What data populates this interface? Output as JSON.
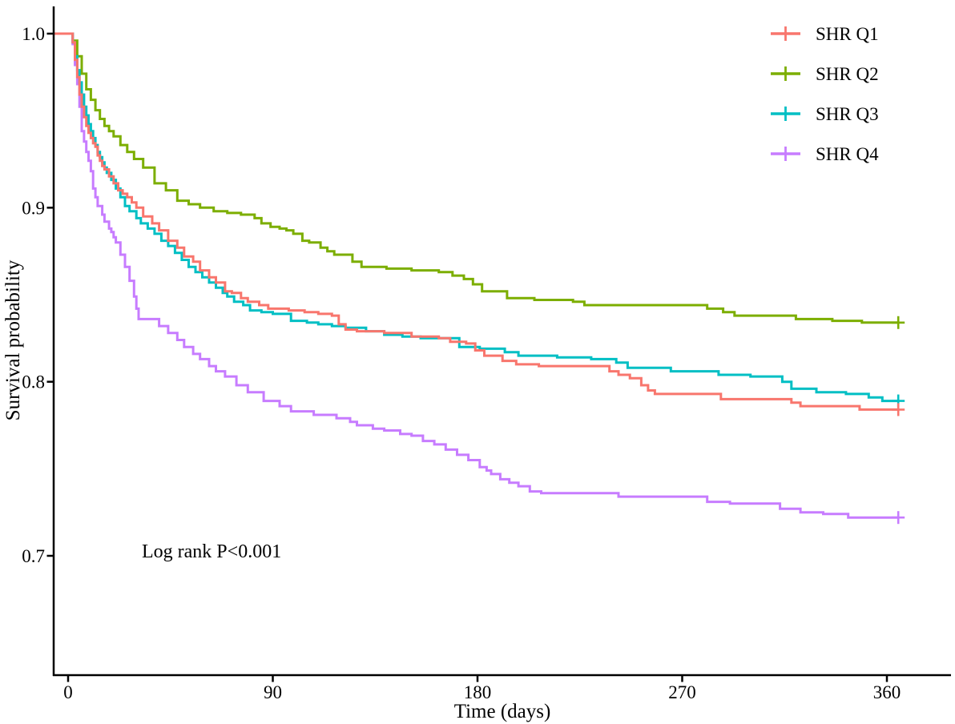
{
  "figure": {
    "type": "kaplan-meier-survival-plot",
    "background": "#ffffff",
    "axis_color": "#000000"
  },
  "chart_data": {
    "type": "line",
    "subtype": "kaplan-meier-step",
    "title": "",
    "xlabel": "Time (days)",
    "ylabel": "Survival probability",
    "x_ticks": [
      0,
      90,
      180,
      270,
      360
    ],
    "y_tick_labels": [
      "1.0",
      "0.9",
      "0.8",
      "0.7"
    ],
    "xlim": [
      0,
      394
    ],
    "ylim": [
      0.632,
      1.016
    ],
    "grid": false,
    "legend_position": "top-right",
    "end_time": 365,
    "annotation": {
      "text": "Log rank P<0.001"
    },
    "series": [
      {
        "name": "SHR Q1",
        "color": "#F8766D",
        "censor_at_end": true,
        "final_value": 0.784,
        "points": [
          [
            0,
            1.0
          ],
          [
            2,
            0.995
          ],
          [
            3,
            0.985
          ],
          [
            4,
            0.975
          ],
          [
            5,
            0.965
          ],
          [
            6,
            0.958
          ],
          [
            7,
            0.952
          ],
          [
            8,
            0.947
          ],
          [
            9,
            0.943
          ],
          [
            10,
            0.94
          ],
          [
            11,
            0.937
          ],
          [
            12,
            0.935
          ],
          [
            13,
            0.93
          ],
          [
            14,
            0.927
          ],
          [
            15,
            0.924
          ],
          [
            16,
            0.922
          ],
          [
            18,
            0.918
          ],
          [
            20,
            0.914
          ],
          [
            22,
            0.91
          ],
          [
            24,
            0.908
          ],
          [
            26,
            0.906
          ],
          [
            28,
            0.903
          ],
          [
            30,
            0.9
          ],
          [
            33,
            0.895
          ],
          [
            37,
            0.891
          ],
          [
            40,
            0.887
          ],
          [
            44,
            0.881
          ],
          [
            48,
            0.877
          ],
          [
            51,
            0.872
          ],
          [
            55,
            0.869
          ],
          [
            58,
            0.864
          ],
          [
            62,
            0.86
          ],
          [
            65,
            0.857
          ],
          [
            69,
            0.852
          ],
          [
            72,
            0.851
          ],
          [
            76,
            0.848
          ],
          [
            79,
            0.846
          ],
          [
            84,
            0.844
          ],
          [
            88,
            0.842
          ],
          [
            97,
            0.841
          ],
          [
            104,
            0.84
          ],
          [
            110,
            0.839
          ],
          [
            116,
            0.838
          ],
          [
            119,
            0.833
          ],
          [
            122,
            0.83
          ],
          [
            127,
            0.829
          ],
          [
            139,
            0.828
          ],
          [
            151,
            0.826
          ],
          [
            163,
            0.825
          ],
          [
            168,
            0.823
          ],
          [
            175,
            0.822
          ],
          [
            179,
            0.818
          ],
          [
            183,
            0.815
          ],
          [
            191,
            0.812
          ],
          [
            197,
            0.81
          ],
          [
            207,
            0.809
          ],
          [
            238,
            0.806
          ],
          [
            242,
            0.804
          ],
          [
            247,
            0.802
          ],
          [
            252,
            0.798
          ],
          [
            255,
            0.795
          ],
          [
            258,
            0.793
          ],
          [
            287,
            0.79
          ],
          [
            318,
            0.788
          ],
          [
            322,
            0.786
          ],
          [
            348,
            0.784
          ]
        ]
      },
      {
        "name": "SHR Q2",
        "color": "#7CAE00",
        "censor_at_end": true,
        "final_value": 0.834,
        "points": [
          [
            0,
            1.0
          ],
          [
            2,
            0.996
          ],
          [
            4,
            0.987
          ],
          [
            6,
            0.977
          ],
          [
            8,
            0.968
          ],
          [
            10,
            0.962
          ],
          [
            12,
            0.956
          ],
          [
            14,
            0.951
          ],
          [
            16,
            0.947
          ],
          [
            18,
            0.944
          ],
          [
            20,
            0.941
          ],
          [
            23,
            0.936
          ],
          [
            26,
            0.932
          ],
          [
            29,
            0.928
          ],
          [
            33,
            0.923
          ],
          [
            38,
            0.914
          ],
          [
            43,
            0.91
          ],
          [
            48,
            0.904
          ],
          [
            53,
            0.902
          ],
          [
            58,
            0.9
          ],
          [
            64,
            0.898
          ],
          [
            70,
            0.897
          ],
          [
            76,
            0.896
          ],
          [
            82,
            0.894
          ],
          [
            85,
            0.891
          ],
          [
            89,
            0.889
          ],
          [
            93,
            0.888
          ],
          [
            96,
            0.887
          ],
          [
            99,
            0.885
          ],
          [
            103,
            0.881
          ],
          [
            106,
            0.88
          ],
          [
            111,
            0.877
          ],
          [
            114,
            0.875
          ],
          [
            117,
            0.873
          ],
          [
            125,
            0.869
          ],
          [
            129,
            0.866
          ],
          [
            140,
            0.865
          ],
          [
            151,
            0.864
          ],
          [
            163,
            0.863
          ],
          [
            169,
            0.861
          ],
          [
            174,
            0.859
          ],
          [
            178,
            0.856
          ],
          [
            182,
            0.852
          ],
          [
            193,
            0.848
          ],
          [
            205,
            0.847
          ],
          [
            222,
            0.846
          ],
          [
            227,
            0.844
          ],
          [
            281,
            0.842
          ],
          [
            288,
            0.84
          ],
          [
            293,
            0.838
          ],
          [
            320,
            0.836
          ],
          [
            336,
            0.835
          ],
          [
            349,
            0.834
          ]
        ]
      },
      {
        "name": "SHR Q3",
        "color": "#00BFC4",
        "censor_at_end": true,
        "final_value": 0.789,
        "points": [
          [
            0,
            1.0
          ],
          [
            2,
            0.995
          ],
          [
            3,
            0.987
          ],
          [
            4,
            0.979
          ],
          [
            5,
            0.972
          ],
          [
            6,
            0.965
          ],
          [
            7,
            0.958
          ],
          [
            8,
            0.953
          ],
          [
            9,
            0.948
          ],
          [
            10,
            0.944
          ],
          [
            11,
            0.94
          ],
          [
            12,
            0.936
          ],
          [
            13,
            0.932
          ],
          [
            14,
            0.929
          ],
          [
            15,
            0.926
          ],
          [
            16,
            0.923
          ],
          [
            17,
            0.92
          ],
          [
            19,
            0.916
          ],
          [
            21,
            0.911
          ],
          [
            23,
            0.906
          ],
          [
            25,
            0.901
          ],
          [
            27,
            0.898
          ],
          [
            30,
            0.894
          ],
          [
            32,
            0.891
          ],
          [
            35,
            0.888
          ],
          [
            38,
            0.885
          ],
          [
            41,
            0.881
          ],
          [
            44,
            0.878
          ],
          [
            47,
            0.874
          ],
          [
            50,
            0.87
          ],
          [
            53,
            0.866
          ],
          [
            56,
            0.863
          ],
          [
            59,
            0.86
          ],
          [
            62,
            0.857
          ],
          [
            65,
            0.854
          ],
          [
            68,
            0.851
          ],
          [
            70,
            0.849
          ],
          [
            73,
            0.846
          ],
          [
            77,
            0.844
          ],
          [
            80,
            0.841
          ],
          [
            85,
            0.84
          ],
          [
            90,
            0.839
          ],
          [
            98,
            0.835
          ],
          [
            105,
            0.834
          ],
          [
            110,
            0.833
          ],
          [
            116,
            0.832
          ],
          [
            122,
            0.831
          ],
          [
            131,
            0.829
          ],
          [
            139,
            0.827
          ],
          [
            147,
            0.826
          ],
          [
            155,
            0.825
          ],
          [
            172,
            0.82
          ],
          [
            181,
            0.819
          ],
          [
            192,
            0.817
          ],
          [
            198,
            0.815
          ],
          [
            215,
            0.814
          ],
          [
            230,
            0.813
          ],
          [
            241,
            0.811
          ],
          [
            246,
            0.808
          ],
          [
            265,
            0.806
          ],
          [
            286,
            0.804
          ],
          [
            300,
            0.803
          ],
          [
            314,
            0.8
          ],
          [
            318,
            0.796
          ],
          [
            329,
            0.794
          ],
          [
            342,
            0.793
          ],
          [
            352,
            0.791
          ],
          [
            358,
            0.789
          ]
        ]
      },
      {
        "name": "SHR Q4",
        "color": "#C77CFF",
        "censor_at_end": true,
        "final_value": 0.722,
        "points": [
          [
            0,
            1.0
          ],
          [
            2,
            0.994
          ],
          [
            3,
            0.982
          ],
          [
            4,
            0.971
          ],
          [
            5,
            0.958
          ],
          [
            6,
            0.944
          ],
          [
            7,
            0.938
          ],
          [
            8,
            0.932
          ],
          [
            9,
            0.927
          ],
          [
            10,
            0.921
          ],
          [
            11,
            0.911
          ],
          [
            12,
            0.906
          ],
          [
            13,
            0.901
          ],
          [
            15,
            0.896
          ],
          [
            16,
            0.892
          ],
          [
            18,
            0.888
          ],
          [
            19,
            0.886
          ],
          [
            20,
            0.883
          ],
          [
            21,
            0.88
          ],
          [
            23,
            0.873
          ],
          [
            25,
            0.866
          ],
          [
            27,
            0.858
          ],
          [
            29,
            0.849
          ],
          [
            30,
            0.842
          ],
          [
            31,
            0.836
          ],
          [
            40,
            0.832
          ],
          [
            44,
            0.828
          ],
          [
            48,
            0.824
          ],
          [
            51,
            0.82
          ],
          [
            55,
            0.816
          ],
          [
            58,
            0.813
          ],
          [
            62,
            0.809
          ],
          [
            65,
            0.806
          ],
          [
            69,
            0.803
          ],
          [
            74,
            0.798
          ],
          [
            79,
            0.794
          ],
          [
            86,
            0.789
          ],
          [
            93,
            0.786
          ],
          [
            98,
            0.783
          ],
          [
            108,
            0.781
          ],
          [
            118,
            0.779
          ],
          [
            124,
            0.777
          ],
          [
            127,
            0.775
          ],
          [
            134,
            0.773
          ],
          [
            139,
            0.772
          ],
          [
            146,
            0.77
          ],
          [
            151,
            0.769
          ],
          [
            156,
            0.766
          ],
          [
            161,
            0.764
          ],
          [
            166,
            0.761
          ],
          [
            171,
            0.758
          ],
          [
            176,
            0.755
          ],
          [
            181,
            0.751
          ],
          [
            184,
            0.749
          ],
          [
            186,
            0.747
          ],
          [
            190,
            0.744
          ],
          [
            194,
            0.742
          ],
          [
            198,
            0.74
          ],
          [
            203,
            0.737
          ],
          [
            208,
            0.736
          ],
          [
            242,
            0.734
          ],
          [
            281,
            0.731
          ],
          [
            291,
            0.73
          ],
          [
            313,
            0.727
          ],
          [
            322,
            0.725
          ],
          [
            332,
            0.724
          ],
          [
            343,
            0.722
          ]
        ]
      }
    ]
  },
  "legend": {
    "items": [
      "SHR Q1",
      "SHR Q2",
      "SHR Q3",
      "SHR Q4"
    ]
  }
}
